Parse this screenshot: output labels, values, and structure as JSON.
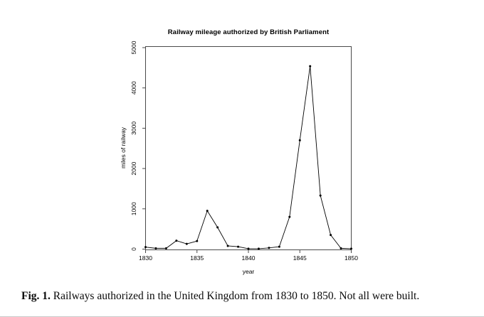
{
  "chart": {
    "title": "Railway mileage authorized by British Parliament",
    "xlabel": "year",
    "ylabel": "miles of railway"
  },
  "chart_data": {
    "type": "line",
    "title": "Railway mileage authorized by British Parliament",
    "xlabel": "year",
    "ylabel": "miles of railway",
    "x": [
      1830,
      1831,
      1832,
      1833,
      1834,
      1835,
      1836,
      1837,
      1838,
      1839,
      1840,
      1841,
      1842,
      1843,
      1844,
      1845,
      1846,
      1847,
      1848,
      1849,
      1850
    ],
    "y": [
      50,
      20,
      20,
      210,
      130,
      200,
      950,
      540,
      80,
      60,
      10,
      10,
      30,
      60,
      800,
      2700,
      4540,
      1330,
      350,
      20,
      10
    ],
    "xlim": [
      1830,
      1850
    ],
    "ylim": [
      0,
      5000
    ],
    "x_ticks": [
      1830,
      1835,
      1840,
      1845,
      1850
    ],
    "y_ticks": [
      0,
      1000,
      2000,
      3000,
      4000,
      5000
    ],
    "grid": false,
    "legend": null,
    "marker": "point",
    "colors": {
      "line": "#000000",
      "marker": "#000000",
      "frame": "#4a4a4a",
      "text": "#000000"
    }
  },
  "caption": {
    "label": "Fig. 1.",
    "text": " Railways authorized in the United Kingdom from 1830 to 1850. Not all were built."
  }
}
